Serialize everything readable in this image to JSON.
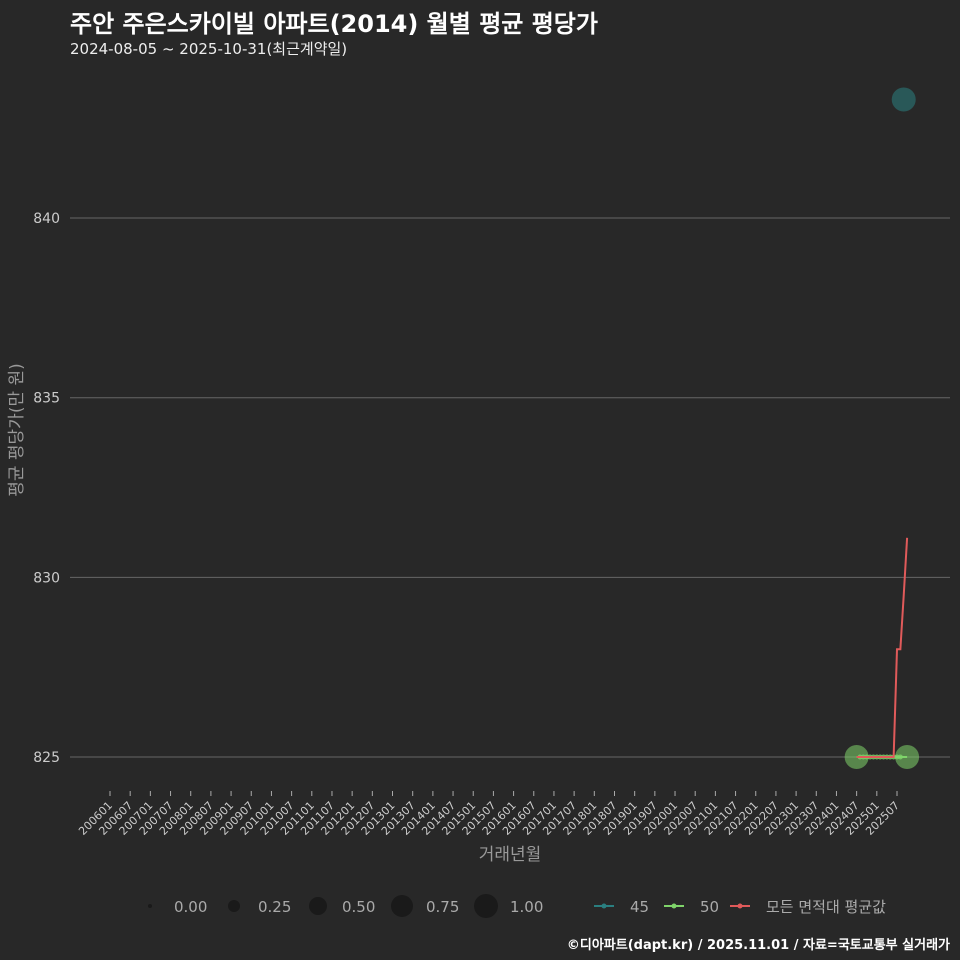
{
  "header": {
    "title": "주안 주은스카이빌 아파트(2014) 월별 평균 평당가",
    "subtitle": "2024-08-05 ~ 2025-10-31(최근계약일)"
  },
  "caption": "©디아파트(dapt.kr) / 2025.11.01 / 자료=국토교통부 실거래가",
  "chart_data": {
    "type": "line",
    "xlabel": "거래년월",
    "ylabel": "평균 평당가(만 원)",
    "ylim": [
      823.9,
      846.2
    ],
    "yticks": [
      825,
      830,
      835,
      840
    ],
    "xticks": [
      "200601",
      "200607",
      "200701",
      "200707",
      "200801",
      "200807",
      "200901",
      "200907",
      "201001",
      "201007",
      "201101",
      "201107",
      "201201",
      "201207",
      "201301",
      "201307",
      "201401",
      "201407",
      "201501",
      "201507",
      "201601",
      "201607",
      "201701",
      "201707",
      "201801",
      "201807",
      "201901",
      "201907",
      "202001",
      "202007",
      "202101",
      "202107",
      "202201",
      "202207",
      "202301",
      "202307",
      "202401",
      "202407",
      "202501",
      "202507"
    ],
    "series": [
      {
        "name": "45",
        "color": "#2a7f80",
        "points": [
          {
            "x": "202509",
            "y": 843.3,
            "size": 0.8
          }
        ]
      },
      {
        "name": "50",
        "color": "#7fd46a",
        "points": [
          {
            "x": "202407",
            "y": 825,
            "size": 0.8
          },
          {
            "x": "202408",
            "y": 825,
            "size": 0.05
          },
          {
            "x": "202409",
            "y": 825,
            "size": 0.05
          },
          {
            "x": "202410",
            "y": 825,
            "size": 0.05
          },
          {
            "x": "202411",
            "y": 825,
            "size": 0.05
          },
          {
            "x": "202412",
            "y": 825,
            "size": 0.05
          },
          {
            "x": "202501",
            "y": 825,
            "size": 0.05
          },
          {
            "x": "202502",
            "y": 825,
            "size": 0.05
          },
          {
            "x": "202503",
            "y": 825,
            "size": 0.05
          },
          {
            "x": "202504",
            "y": 825,
            "size": 0.05
          },
          {
            "x": "202505",
            "y": 825,
            "size": 0.05
          },
          {
            "x": "202506",
            "y": 825,
            "size": 0.05
          },
          {
            "x": "202507",
            "y": 825,
            "size": 0.05
          },
          {
            "x": "202508",
            "y": 825,
            "size": 0.05
          },
          {
            "x": "202510",
            "y": 825,
            "size": 0.8
          }
        ]
      },
      {
        "name": "모든 면적대 평균값",
        "color": "#e05a5a",
        "points": [
          {
            "x": "202407",
            "y": 825
          },
          {
            "x": "202506",
            "y": 825
          },
          {
            "x": "202507",
            "y": 828
          },
          {
            "x": "202508",
            "y": 828
          },
          {
            "x": "202509",
            "y": 829.5
          },
          {
            "x": "202510",
            "y": 831.1
          }
        ]
      }
    ],
    "size_legend": [
      "0.00",
      "0.25",
      "0.50",
      "0.75",
      "1.00"
    ],
    "legend_placement": "bottom"
  }
}
